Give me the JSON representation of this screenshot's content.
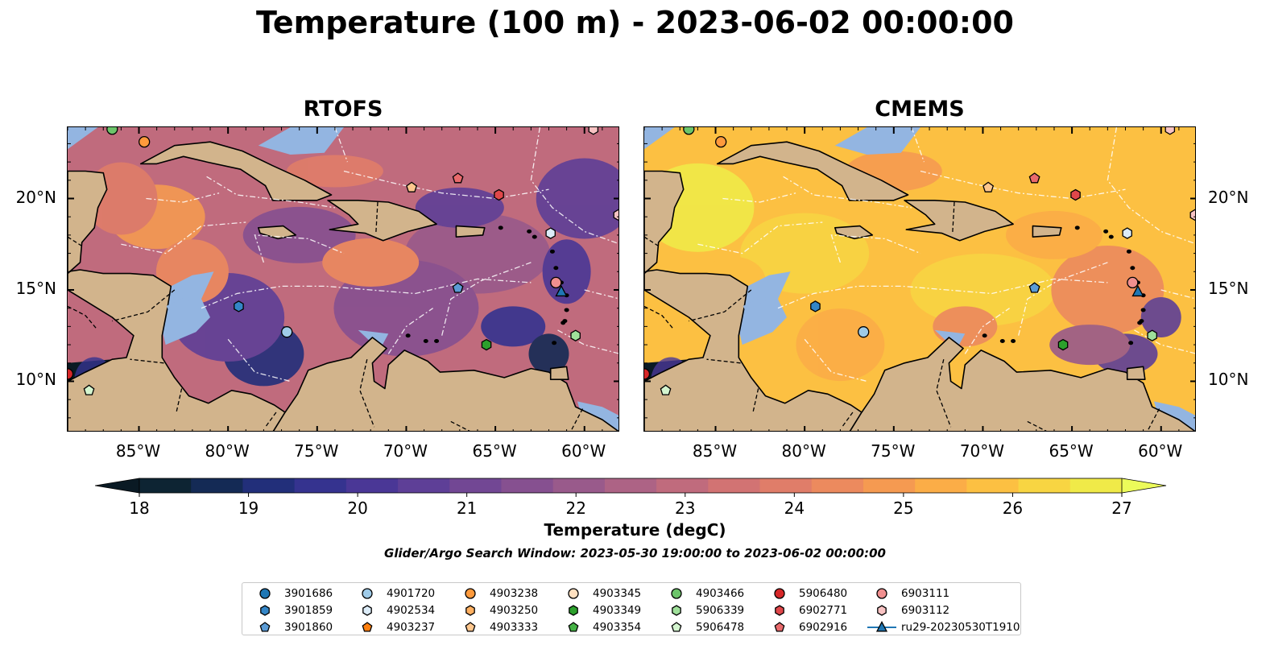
{
  "title": "Temperature (100 m) - 2023-06-02 00:00:00",
  "panels": [
    {
      "title": "RTOFS",
      "palette": "rtofs"
    },
    {
      "title": "CMEMS",
      "palette": "cmems"
    }
  ],
  "map": {
    "lon_range": [
      -89,
      -58
    ],
    "lat_range": [
      7.2,
      23.9
    ],
    "lon_ticks": [
      -85,
      -80,
      -75,
      -70,
      -65,
      -60
    ],
    "lon_tick_labels": [
      "85°W",
      "80°W",
      "75°W",
      "70°W",
      "65°W",
      "60°W"
    ],
    "lat_ticks": [
      10,
      15,
      20
    ],
    "lat_tick_labels": [
      "10°N",
      "15°N",
      "20°N"
    ],
    "land_color": "#d2b48c",
    "shallow_color": "#93b5e1"
  },
  "colorbar": {
    "label": "Temperature (degC)",
    "min": 18,
    "max": 27,
    "ticks": [
      "18",
      "19",
      "20",
      "21",
      "22",
      "23",
      "24",
      "25",
      "26",
      "27"
    ],
    "colors": [
      "#0d2433",
      "#142a55",
      "#222f7a",
      "#35338f",
      "#4a3796",
      "#5e3f97",
      "#724794",
      "#865090",
      "#995a8b",
      "#ad6385",
      "#c06b7d",
      "#d27373",
      "#e07d69",
      "#ec8a5e",
      "#f59a51",
      "#fbad47",
      "#fcc042",
      "#f8d542",
      "#f0ea48"
    ],
    "extend_low": "#0a1a24",
    "extend_high": "#ecfb5a"
  },
  "subtitle": "Glider/Argo Search Window: 2023-05-30 19:00:00 to 2023-06-02 00:00:00",
  "legend": [
    {
      "label": "3901686",
      "marker": "circle",
      "color": "#1f77b4"
    },
    {
      "label": "3901859",
      "marker": "hexagon",
      "color": "#3486c7"
    },
    {
      "label": "3901860",
      "marker": "pentagon",
      "color": "#5b9bd5"
    },
    {
      "label": "4901720",
      "marker": "circle",
      "color": "#9fcbe8"
    },
    {
      "label": "4902534",
      "marker": "hexagon",
      "color": "#dcecf8"
    },
    {
      "label": "4903237",
      "marker": "pentagon",
      "color": "#ff7f0e"
    },
    {
      "label": "4903238",
      "marker": "circle",
      "color": "#ff9a3c"
    },
    {
      "label": "4903250",
      "marker": "hexagon",
      "color": "#ffb061"
    },
    {
      "label": "4903333",
      "marker": "pentagon",
      "color": "#ffc78e"
    },
    {
      "label": "4903345",
      "marker": "circle",
      "color": "#ffe0c0"
    },
    {
      "label": "4903349",
      "marker": "hexagon",
      "color": "#2ca02c"
    },
    {
      "label": "4903354",
      "marker": "pentagon",
      "color": "#45b245"
    },
    {
      "label": "4903466",
      "marker": "circle",
      "color": "#6cc46a"
    },
    {
      "label": "5906339",
      "marker": "hexagon",
      "color": "#9fe09a"
    },
    {
      "label": "5906478",
      "marker": "pentagon",
      "color": "#d4f5cf"
    },
    {
      "label": "5906480",
      "marker": "circle",
      "color": "#d62728"
    },
    {
      "label": "6902771",
      "marker": "hexagon",
      "color": "#e0474a"
    },
    {
      "label": "6902916",
      "marker": "pentagon",
      "color": "#e96a6c"
    },
    {
      "label": "6903111",
      "marker": "circle",
      "color": "#f08f8f"
    },
    {
      "label": "6903112",
      "marker": "hexagon",
      "color": "#f8c3c3"
    },
    {
      "label": "ru29-20230530T1910",
      "marker": "triangle-line",
      "color": "#1f77b4"
    }
  ],
  "observations": [
    {
      "id": "4903466",
      "lon": -86.5,
      "lat": 23.8
    },
    {
      "id": "4903238",
      "lon": -84.7,
      "lat": 23.1
    },
    {
      "id": "6903112",
      "lon": -59.5,
      "lat": 23.8
    },
    {
      "id": "6902916",
      "lon": -67.1,
      "lat": 21.1
    },
    {
      "id": "4903333",
      "lon": -69.7,
      "lat": 20.6
    },
    {
      "id": "6902771",
      "lon": -64.8,
      "lat": 20.2
    },
    {
      "id": "6903112",
      "lon": -58.1,
      "lat": 19.1
    },
    {
      "id": "4902534",
      "lon": -61.9,
      "lat": 18.1
    },
    {
      "id": "3901860",
      "lon": -67.1,
      "lat": 15.1
    },
    {
      "id": "6903111",
      "lon": -61.6,
      "lat": 15.4
    },
    {
      "id": "ru29-20230530T1910",
      "lon": -61.3,
      "lat": 14.9
    },
    {
      "id": "3901859",
      "lon": -79.4,
      "lat": 14.1
    },
    {
      "id": "4901720",
      "lon": -76.7,
      "lat": 12.7
    },
    {
      "id": "5906339",
      "lon": -60.5,
      "lat": 12.5
    },
    {
      "id": "4903349",
      "lon": -65.5,
      "lat": 12.0
    },
    {
      "id": "5906480",
      "lon": -89.0,
      "lat": 10.4
    },
    {
      "id": "5906478",
      "lon": -87.8,
      "lat": 9.5
    }
  ]
}
